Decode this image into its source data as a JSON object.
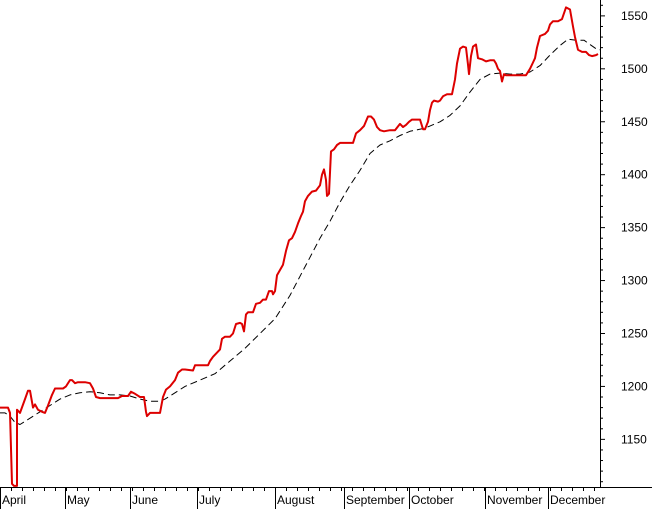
{
  "chart_data": {
    "type": "line",
    "title": "",
    "xlabel": "",
    "ylabel": "",
    "ylim": [
      1105,
      1565
    ],
    "xlim": [
      0,
      600
    ],
    "y_ticks": [
      1150,
      1200,
      1250,
      1300,
      1350,
      1400,
      1450,
      1500,
      1550
    ],
    "y_axis_position": "right",
    "grid": false,
    "legend": "none",
    "month_ticks": [
      {
        "label": "April",
        "x": 0
      },
      {
        "label": "May",
        "x": 65
      },
      {
        "label": "June",
        "x": 130
      },
      {
        "label": "July",
        "x": 197
      },
      {
        "label": "August",
        "x": 275
      },
      {
        "label": "September",
        "x": 344
      },
      {
        "label": "October",
        "x": 409
      },
      {
        "label": "November",
        "x": 485
      },
      {
        "label": "December",
        "x": 548
      }
    ],
    "series": [
      {
        "style": "solid",
        "color": "#dd0000",
        "points": [
          [
            0,
            1180
          ],
          [
            8,
            1180
          ],
          [
            10,
            1175
          ],
          [
            12,
            1108
          ],
          [
            14,
            1106
          ],
          [
            17,
            1106
          ],
          [
            17,
            1178
          ],
          [
            20,
            1175
          ],
          [
            25,
            1188
          ],
          [
            28,
            1196
          ],
          [
            30,
            1196
          ],
          [
            33,
            1180
          ],
          [
            35,
            1183
          ],
          [
            38,
            1178
          ],
          [
            42,
            1176
          ],
          [
            45,
            1175
          ],
          [
            48,
            1182
          ],
          [
            52,
            1192
          ],
          [
            55,
            1198
          ],
          [
            58,
            1198
          ],
          [
            63,
            1198
          ],
          [
            66,
            1200
          ],
          [
            70,
            1206
          ],
          [
            72,
            1206
          ],
          [
            75,
            1203
          ],
          [
            78,
            1204
          ],
          [
            85,
            1204
          ],
          [
            90,
            1203
          ],
          [
            93,
            1198
          ],
          [
            96,
            1190
          ],
          [
            100,
            1189
          ],
          [
            110,
            1189
          ],
          [
            118,
            1189
          ],
          [
            122,
            1191
          ],
          [
            128,
            1191
          ],
          [
            131,
            1195
          ],
          [
            135,
            1193
          ],
          [
            140,
            1190
          ],
          [
            144,
            1190
          ],
          [
            146,
            1176
          ],
          [
            147,
            1172
          ],
          [
            150,
            1175
          ],
          [
            155,
            1175
          ],
          [
            160,
            1175
          ],
          [
            163,
            1190
          ],
          [
            166,
            1197
          ],
          [
            170,
            1200
          ],
          [
            175,
            1206
          ],
          [
            178,
            1213
          ],
          [
            182,
            1216
          ],
          [
            185,
            1216
          ],
          [
            193,
            1215
          ],
          [
            195,
            1220
          ],
          [
            200,
            1220
          ],
          [
            208,
            1220
          ],
          [
            210,
            1224
          ],
          [
            213,
            1228
          ],
          [
            220,
            1235
          ],
          [
            222,
            1245
          ],
          [
            225,
            1247
          ],
          [
            230,
            1247
          ],
          [
            233,
            1250
          ],
          [
            236,
            1259
          ],
          [
            240,
            1260
          ],
          [
            242,
            1259
          ],
          [
            244,
            1252
          ],
          [
            246,
            1268
          ],
          [
            248,
            1270
          ],
          [
            250,
            1270
          ],
          [
            253,
            1270
          ],
          [
            256,
            1278
          ],
          [
            260,
            1279
          ],
          [
            263,
            1282
          ],
          [
            266,
            1282
          ],
          [
            269,
            1290
          ],
          [
            272,
            1290
          ],
          [
            273,
            1287
          ],
          [
            275,
            1290
          ],
          [
            277,
            1305
          ],
          [
            280,
            1310
          ],
          [
            283,
            1315
          ],
          [
            286,
            1328
          ],
          [
            289,
            1338
          ],
          [
            292,
            1340
          ],
          [
            295,
            1346
          ],
          [
            298,
            1354
          ],
          [
            301,
            1361
          ],
          [
            303,
            1365
          ],
          [
            305,
            1375
          ],
          [
            308,
            1380
          ],
          [
            312,
            1384
          ],
          [
            316,
            1385
          ],
          [
            320,
            1390
          ],
          [
            322,
            1400
          ],
          [
            324,
            1405
          ],
          [
            326,
            1395
          ],
          [
            327,
            1380
          ],
          [
            329,
            1382
          ],
          [
            331,
            1422
          ],
          [
            334,
            1424
          ],
          [
            337,
            1428
          ],
          [
            340,
            1430
          ],
          [
            344,
            1430
          ],
          [
            350,
            1430
          ],
          [
            353,
            1430
          ],
          [
            356,
            1439
          ],
          [
            360,
            1442
          ],
          [
            364,
            1446
          ],
          [
            368,
            1455
          ],
          [
            371,
            1455
          ],
          [
            374,
            1452
          ],
          [
            377,
            1445
          ],
          [
            380,
            1442
          ],
          [
            384,
            1441
          ],
          [
            390,
            1442
          ],
          [
            395,
            1442
          ],
          [
            400,
            1448
          ],
          [
            403,
            1445
          ],
          [
            406,
            1447
          ],
          [
            409,
            1450
          ],
          [
            412,
            1452
          ],
          [
            418,
            1452
          ],
          [
            420,
            1452
          ],
          [
            423,
            1443
          ],
          [
            425,
            1443
          ],
          [
            428,
            1450
          ],
          [
            430,
            1461
          ],
          [
            432,
            1468
          ],
          [
            434,
            1470
          ],
          [
            438,
            1469
          ],
          [
            440,
            1470
          ],
          [
            443,
            1474
          ],
          [
            447,
            1476
          ],
          [
            452,
            1476
          ],
          [
            455,
            1490
          ],
          [
            457,
            1505
          ],
          [
            460,
            1519
          ],
          [
            463,
            1521
          ],
          [
            466,
            1520
          ],
          [
            468,
            1504
          ],
          [
            469,
            1495
          ],
          [
            471,
            1512
          ],
          [
            473,
            1521
          ],
          [
            476,
            1523
          ],
          [
            478,
            1510
          ],
          [
            482,
            1509
          ],
          [
            486,
            1507
          ],
          [
            490,
            1508
          ],
          [
            494,
            1508
          ],
          [
            496,
            1505
          ],
          [
            498,
            1500
          ],
          [
            500,
            1498
          ],
          [
            502,
            1488
          ],
          [
            504,
            1495
          ],
          [
            506,
            1494
          ],
          [
            510,
            1494
          ],
          [
            520,
            1494
          ],
          [
            526,
            1494
          ],
          [
            530,
            1500
          ],
          [
            533,
            1506
          ],
          [
            535,
            1510
          ],
          [
            537,
            1520
          ],
          [
            540,
            1531
          ],
          [
            545,
            1533
          ],
          [
            548,
            1536
          ],
          [
            550,
            1542
          ],
          [
            553,
            1545
          ],
          [
            558,
            1545
          ],
          [
            562,
            1547
          ],
          [
            566,
            1558
          ],
          [
            570,
            1556
          ],
          [
            573,
            1540
          ],
          [
            575,
            1530
          ],
          [
            578,
            1518
          ],
          [
            582,
            1516
          ],
          [
            586,
            1516
          ],
          [
            589,
            1513
          ],
          [
            592,
            1512
          ],
          [
            596,
            1513
          ],
          [
            598,
            1514
          ]
        ]
      },
      {
        "style": "dashed",
        "color": "#000000",
        "points": [
          [
            0,
            1175
          ],
          [
            5,
            1175
          ],
          [
            10,
            1172
          ],
          [
            15,
            1166
          ],
          [
            20,
            1164
          ],
          [
            30,
            1170
          ],
          [
            40,
            1176
          ],
          [
            50,
            1182
          ],
          [
            60,
            1188
          ],
          [
            70,
            1192
          ],
          [
            80,
            1194
          ],
          [
            90,
            1195
          ],
          [
            100,
            1194
          ],
          [
            110,
            1192
          ],
          [
            120,
            1192
          ],
          [
            130,
            1191
          ],
          [
            140,
            1188
          ],
          [
            150,
            1186
          ],
          [
            160,
            1186
          ],
          [
            165,
            1188
          ],
          [
            175,
            1194
          ],
          [
            185,
            1200
          ],
          [
            200,
            1206
          ],
          [
            215,
            1212
          ],
          [
            230,
            1224
          ],
          [
            245,
            1236
          ],
          [
            260,
            1250
          ],
          [
            275,
            1264
          ],
          [
            290,
            1286
          ],
          [
            300,
            1304
          ],
          [
            310,
            1322
          ],
          [
            320,
            1340
          ],
          [
            330,
            1356
          ],
          [
            340,
            1374
          ],
          [
            350,
            1390
          ],
          [
            360,
            1404
          ],
          [
            370,
            1420
          ],
          [
            380,
            1428
          ],
          [
            390,
            1432
          ],
          [
            400,
            1437
          ],
          [
            410,
            1441
          ],
          [
            425,
            1444
          ],
          [
            440,
            1450
          ],
          [
            450,
            1456
          ],
          [
            460,
            1465
          ],
          [
            470,
            1478
          ],
          [
            480,
            1490
          ],
          [
            490,
            1495
          ],
          [
            500,
            1496
          ],
          [
            510,
            1495
          ],
          [
            520,
            1495
          ],
          [
            530,
            1497
          ],
          [
            540,
            1503
          ],
          [
            550,
            1513
          ],
          [
            560,
            1522
          ],
          [
            568,
            1528
          ],
          [
            576,
            1527
          ],
          [
            584,
            1527
          ],
          [
            590,
            1523
          ],
          [
            596,
            1519
          ],
          [
            600,
            1518
          ]
        ]
      }
    ]
  }
}
